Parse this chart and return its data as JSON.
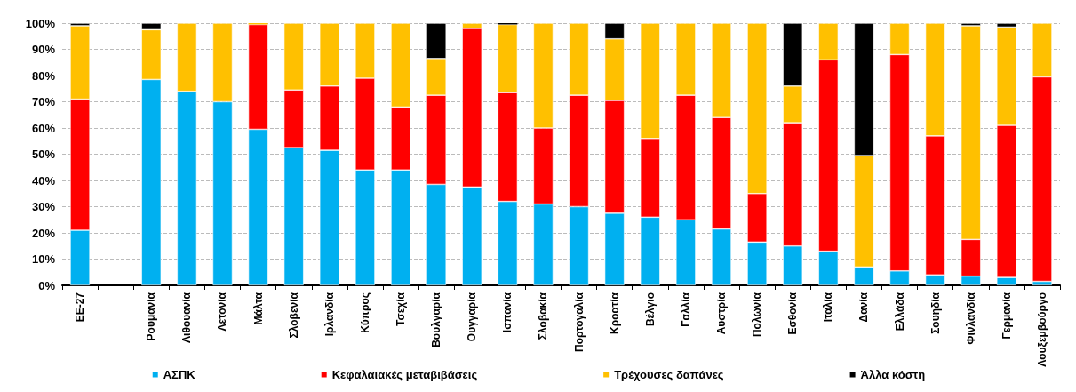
{
  "chart_data": {
    "type": "bar",
    "stacked": true,
    "categories": [
      "ΕΕ-27",
      null,
      "Ρουμανία",
      "Λιθουανία",
      "Λετονία",
      "Μάλτα",
      "Σλοβενία",
      "Ιρλανδία",
      "Κύπρος",
      "Τσεχία",
      "Βουλγαρία",
      "Ουγγαρία",
      "Ισπανία",
      "Σλοβακία",
      "Πορτογαλία",
      "Κροατία",
      "Βέλγιο",
      "Γαλλία",
      "Αυστρία",
      "Πολωνία",
      "Εσθονία",
      "Ιταλία",
      "Δανία",
      "Ελλάδα",
      "Σουηδία",
      "Φινλανδία",
      "Γερμανία",
      "Λουξεμβούργο"
    ],
    "series": [
      {
        "name": "ΑΣΠΚ",
        "color": "#00b0f0",
        "values": [
          21,
          null,
          78.5,
          74,
          70,
          59.5,
          52.5,
          51.5,
          44,
          44,
          38.5,
          37.5,
          32,
          31,
          30,
          27.5,
          26,
          25,
          21.5,
          16.5,
          15,
          13,
          7,
          5.5,
          4,
          3.5,
          3,
          1.5
        ]
      },
      {
        "name": "Κεφαλαιακές μεταβιβάσεις",
        "color": "#ff0000",
        "values": [
          50,
          null,
          0,
          0,
          0,
          40,
          22,
          24.5,
          35,
          24,
          34,
          60.5,
          41.5,
          29,
          42.5,
          43,
          30,
          47.5,
          42.5,
          18.5,
          47,
          73,
          0,
          82.5,
          53,
          14,
          58,
          78
        ]
      },
      {
        "name": "Τρέχουσες δαπάνες",
        "color": "#ffc000",
        "values": [
          28,
          null,
          19,
          26,
          30,
          0.5,
          25.5,
          24,
          21,
          32,
          14,
          2,
          26,
          40,
          27.5,
          23.5,
          44,
          27.5,
          36,
          65,
          14,
          14,
          42.5,
          12,
          43,
          81.5,
          37.5,
          20.5
        ]
      },
      {
        "name": "Άλλα κόστη",
        "color": "#000000",
        "values": [
          1,
          null,
          2.5,
          0,
          0,
          0,
          0,
          0,
          0,
          0,
          13.5,
          0,
          0.5,
          0,
          0,
          6,
          0,
          0,
          0,
          0,
          24,
          0,
          50.5,
          0,
          0,
          1,
          1.5,
          0
        ]
      }
    ],
    "ylim": [
      0,
      100
    ],
    "yticks": [
      {
        "value": 0,
        "label": "0%"
      },
      {
        "value": 10,
        "label": "10%"
      },
      {
        "value": 20,
        "label": "20%"
      },
      {
        "value": 30,
        "label": "30%"
      },
      {
        "value": 40,
        "label": "40%"
      },
      {
        "value": 50,
        "label": "50%"
      },
      {
        "value": 60,
        "label": "60%"
      },
      {
        "value": 70,
        "label": "70%"
      },
      {
        "value": 80,
        "label": "80%"
      },
      {
        "value": 90,
        "label": "90%"
      },
      {
        "value": 100,
        "label": "100%"
      }
    ],
    "grid": "y",
    "legend": "bottom"
  }
}
